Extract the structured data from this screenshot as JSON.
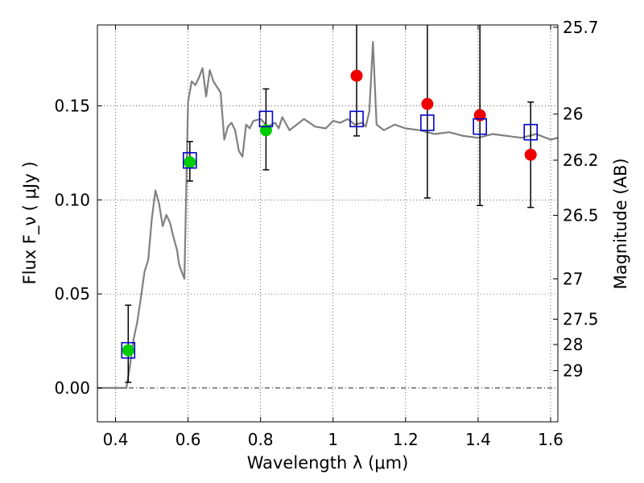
{
  "chart_data": {
    "type": "scatter",
    "xlabel": "Wavelength  λ (μm)",
    "ylabel": "Flux  F_ν  ( μJy )",
    "ylabel_right": "Magnitude (AB)",
    "xlim": [
      0.35,
      1.62
    ],
    "ylim": [
      -0.018,
      0.193
    ],
    "grid": true,
    "x_ticks": [
      0.4,
      0.6,
      0.8,
      1.0,
      1.2,
      1.4,
      1.6
    ],
    "x_tick_labels": [
      "0.4",
      "0.6",
      "0.8",
      "1",
      "1.2",
      "1.4",
      "1.6"
    ],
    "y_ticks": [
      0.0,
      0.05,
      0.1,
      0.15
    ],
    "y_tick_labels": [
      "0.00",
      "0.05",
      "0.10",
      "0.15"
    ],
    "right_ticks": [
      {
        "label": "25.7",
        "flux": 0.1918
      },
      {
        "label": "26",
        "flux": 0.1456
      },
      {
        "label": "26.2",
        "flux": 0.1211
      },
      {
        "label": "26.5",
        "flux": 0.0918
      },
      {
        "label": "27",
        "flux": 0.058
      },
      {
        "label": "27.5",
        "flux": 0.0366
      },
      {
        "label": "28",
        "flux": 0.0231
      },
      {
        "label": "29",
        "flux": 0.0092
      }
    ],
    "series": [
      {
        "kind": "model_spectrum",
        "color": "#808080",
        "x": [
          0.35,
          0.43,
          0.44,
          0.45,
          0.46,
          0.47,
          0.48,
          0.49,
          0.5,
          0.51,
          0.52,
          0.53,
          0.54,
          0.55,
          0.56,
          0.57,
          0.575,
          0.58,
          0.59,
          0.6,
          0.61,
          0.62,
          0.63,
          0.64,
          0.65,
          0.66,
          0.67,
          0.68,
          0.69,
          0.7,
          0.71,
          0.72,
          0.73,
          0.74,
          0.75,
          0.76,
          0.77,
          0.78,
          0.8,
          0.82,
          0.84,
          0.85,
          0.86,
          0.88,
          0.9,
          0.92,
          0.95,
          0.98,
          1.0,
          1.02,
          1.04,
          1.06,
          1.08,
          1.09,
          1.1,
          1.11,
          1.12,
          1.14,
          1.17,
          1.2,
          1.24,
          1.28,
          1.32,
          1.36,
          1.4,
          1.44,
          1.48,
          1.52,
          1.56,
          1.6,
          1.62
        ],
        "y": [
          0.0,
          0.0,
          0.012,
          0.026,
          0.035,
          0.048,
          0.062,
          0.068,
          0.09,
          0.105,
          0.098,
          0.086,
          0.092,
          0.088,
          0.08,
          0.073,
          0.066,
          0.063,
          0.058,
          0.152,
          0.163,
          0.161,
          0.165,
          0.17,
          0.155,
          0.169,
          0.163,
          0.16,
          0.157,
          0.132,
          0.139,
          0.141,
          0.137,
          0.126,
          0.123,
          0.14,
          0.138,
          0.142,
          0.143,
          0.139,
          0.141,
          0.138,
          0.144,
          0.137,
          0.14,
          0.143,
          0.139,
          0.138,
          0.142,
          0.141,
          0.143,
          0.14,
          0.141,
          0.139,
          0.147,
          0.184,
          0.14,
          0.137,
          0.14,
          0.138,
          0.137,
          0.135,
          0.136,
          0.134,
          0.133,
          0.135,
          0.134,
          0.133,
          0.135,
          0.132,
          0.133
        ]
      },
      {
        "kind": "model_photometry",
        "marker": "open-square",
        "color": "#0000cc",
        "x": [
          0.435,
          0.605,
          0.815,
          1.065,
          1.26,
          1.405,
          1.545
        ],
        "y": [
          0.02,
          0.121,
          0.143,
          0.143,
          0.141,
          0.139,
          0.136
        ]
      },
      {
        "kind": "detections",
        "marker": "filled-circle",
        "color": "#00cc00",
        "x": [
          0.435,
          0.605,
          0.815
        ],
        "y": [
          0.02,
          0.12,
          0.137
        ],
        "err_low": [
          0.003,
          0.11,
          0.116
        ],
        "err_high": [
          0.044,
          0.131,
          0.159
        ]
      },
      {
        "kind": "non_detections",
        "marker": "filled-circle",
        "color": "#ee0000",
        "x": [
          1.065,
          1.26,
          1.405,
          1.545
        ],
        "y": [
          0.166,
          0.151,
          0.145,
          0.124
        ],
        "err_low": [
          0.134,
          0.101,
          0.097,
          0.096
        ],
        "err_high": [
          0.193,
          0.193,
          0.193,
          0.152
        ]
      }
    ]
  }
}
